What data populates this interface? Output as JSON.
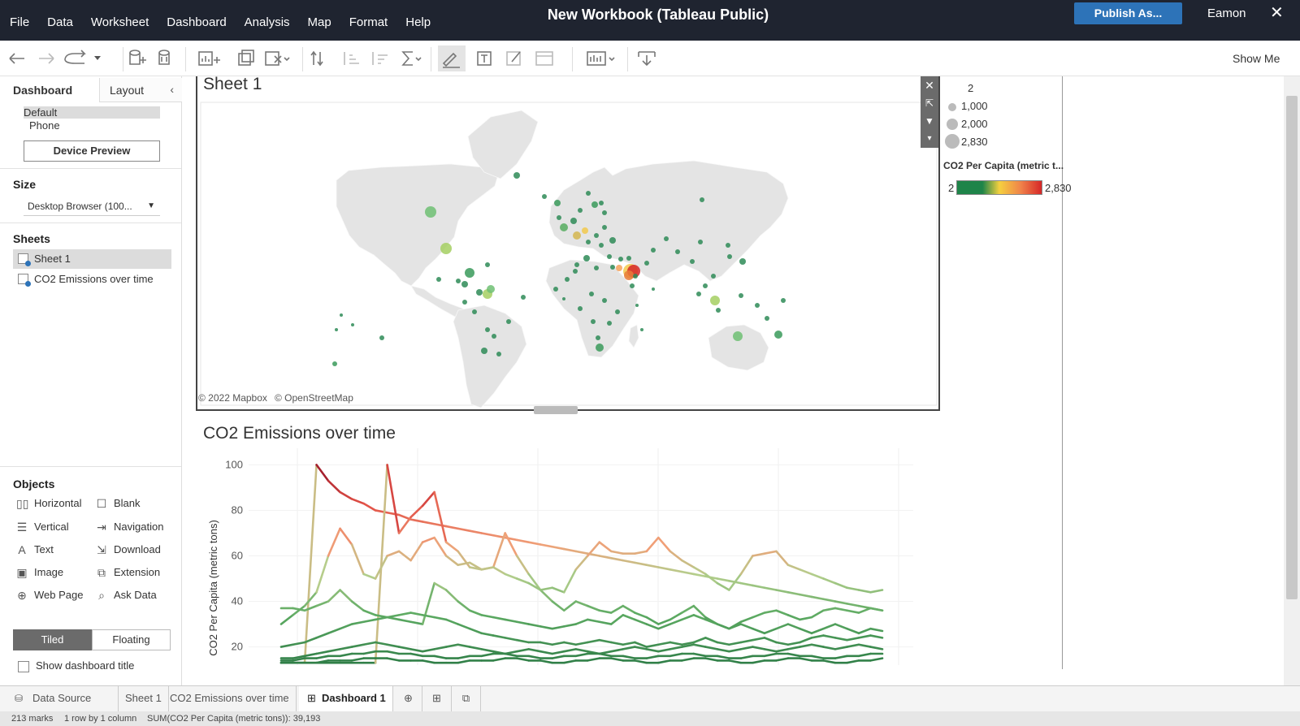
{
  "titlebar": {
    "title": "New Workbook (Tableau Public)",
    "menu": [
      "File",
      "Data",
      "Worksheet",
      "Dashboard",
      "Analysis",
      "Map",
      "Format",
      "Help"
    ],
    "publish_label": "Publish As...",
    "user": "Eamon",
    "close_glyph": "✕"
  },
  "toolbar": {
    "show_me_label": "Show Me"
  },
  "left_panel": {
    "tab_dashboard": "Dashboard",
    "tab_layout": "Layout",
    "device_default": "Default",
    "device_phone": "Phone",
    "device_preview_label": "Device Preview",
    "size_heading": "Size",
    "size_value": "Desktop Browser (100...",
    "sheets_heading": "Sheets",
    "sheets": [
      "Sheet 1",
      "CO2 Emissions over time"
    ],
    "objects_heading": "Objects",
    "objects": [
      {
        "label": "Horizontal",
        "icon": "horizontal-icon"
      },
      {
        "label": "Blank",
        "icon": "blank-icon"
      },
      {
        "label": "Vertical",
        "icon": "vertical-icon"
      },
      {
        "label": "Navigation",
        "icon": "navigation-icon"
      },
      {
        "label": "Text",
        "icon": "text-icon"
      },
      {
        "label": "Download",
        "icon": "download-icon"
      },
      {
        "label": "Image",
        "icon": "image-icon"
      },
      {
        "label": "Extension",
        "icon": "extension-icon"
      },
      {
        "label": "Web Page",
        "icon": "web-page-icon"
      },
      {
        "label": "Ask Data",
        "icon": "ask-data-icon"
      }
    ],
    "tiled_label": "Tiled",
    "floating_label": "Floating",
    "show_title_label": "Show dashboard title"
  },
  "map_sheet": {
    "title": "Sheet 1",
    "attribution_mapbox": "© 2022 Mapbox",
    "attribution_osm": "© OpenStreetMap"
  },
  "legend": {
    "size_values": [
      "2",
      "1,000",
      "2,000",
      "2,830"
    ],
    "color_title": "CO2 Per Capita (metric t...",
    "color_min": "2",
    "color_max": "2,830",
    "colors": {
      "low": "#1e8449",
      "mid": "#f4d03f",
      "high": "#d62728"
    }
  },
  "bottom_tabs": [
    "Data Source",
    "Sheet 1",
    "CO2 Emissions over time",
    "Dashboard 1"
  ],
  "status": {
    "marks": "213 marks",
    "rows": "1 row by 1 column",
    "sum": "SUM(CO2 Per Capita (metric tons)): 39,193"
  },
  "chart_data": {
    "type": "line",
    "title": "CO2 Emissions over time",
    "ylabel": "CO2 Per Capita (metric tons)",
    "xlabel": "",
    "yticks": [
      "100",
      "80",
      "60",
      "40",
      "20"
    ],
    "ylim": [
      12,
      103
    ],
    "grid": true,
    "x": [
      0,
      1,
      2,
      3,
      4,
      5,
      6,
      7,
      8,
      9,
      10,
      11,
      12,
      13,
      14,
      15,
      16,
      17,
      18,
      19,
      20,
      21,
      22,
      23,
      24,
      25,
      26,
      27,
      28,
      29,
      30,
      31,
      32,
      33,
      34,
      35,
      36,
      37,
      38,
      39,
      40,
      41,
      42,
      43,
      44,
      45,
      46,
      47,
      48,
      49,
      50,
      51
    ],
    "series": [
      {
        "values": [
          13,
          13,
          13,
          100,
          93,
          88,
          85,
          83,
          80,
          79,
          78,
          76,
          75,
          74,
          73,
          72,
          71,
          70,
          69,
          68,
          67,
          66,
          65,
          64,
          63,
          62,
          61,
          60,
          59,
          58,
          57,
          56,
          55,
          54,
          53,
          52,
          51,
          50,
          49,
          48,
          47,
          46,
          45,
          44,
          43,
          42,
          41,
          40,
          39,
          38,
          37,
          36
        ]
      },
      {
        "values": [
          13,
          13,
          13,
          13,
          13,
          13,
          13,
          13,
          13,
          100,
          70,
          77,
          82,
          88,
          66,
          62,
          55,
          54,
          55,
          70,
          60,
          52,
          45,
          40,
          36,
          40,
          38,
          36,
          35,
          38,
          35,
          33,
          30,
          32,
          35,
          38,
          33,
          30,
          28,
          30,
          28,
          26,
          28,
          30,
          28,
          26,
          28,
          30,
          28,
          26,
          28,
          27
        ]
      },
      {
        "values": [
          30,
          34,
          38,
          44,
          60,
          72,
          65,
          52,
          50,
          60,
          62,
          58,
          66,
          68,
          60,
          56,
          57,
          54,
          55,
          52,
          50,
          48,
          45,
          46,
          44,
          54,
          60,
          66,
          62,
          61,
          61,
          62,
          68,
          62,
          58,
          55,
          52,
          48,
          45,
          52,
          60,
          61,
          62,
          56,
          54,
          52,
          50,
          48,
          46,
          45,
          44,
          45
        ]
      },
      {
        "values": [
          37,
          37,
          36,
          38,
          40,
          45,
          40,
          36,
          34,
          33,
          32,
          31,
          30,
          48,
          45,
          40,
          36,
          34,
          33,
          32,
          31,
          30,
          29,
          28,
          29,
          30,
          32,
          31,
          30,
          34,
          32,
          30,
          28,
          30,
          32,
          34,
          32,
          30,
          28,
          31,
          33,
          35,
          36,
          34,
          32,
          33,
          36,
          37,
          36,
          35,
          37,
          36
        ]
      },
      {
        "values": [
          20,
          21,
          22,
          24,
          26,
          28,
          30,
          31,
          32,
          33,
          34,
          35,
          34,
          33,
          32,
          30,
          28,
          26,
          25,
          24,
          23,
          22,
          22,
          21,
          22,
          21,
          22,
          23,
          22,
          21,
          22,
          20,
          21,
          22,
          21,
          22,
          24,
          22,
          21,
          22,
          23,
          24,
          22,
          21,
          22,
          24,
          25,
          24,
          23,
          24,
          25,
          24
        ]
      },
      {
        "values": [
          15,
          15,
          16,
          17,
          18,
          19,
          20,
          21,
          22,
          21,
          20,
          19,
          18,
          19,
          20,
          21,
          20,
          19,
          18,
          17,
          18,
          19,
          18,
          17,
          18,
          19,
          18,
          17,
          18,
          19,
          20,
          19,
          18,
          19,
          20,
          21,
          20,
          19,
          18,
          19,
          20,
          19,
          18,
          19,
          20,
          21,
          20,
          19,
          20,
          21,
          20,
          19
        ]
      },
      {
        "values": [
          14,
          14,
          15,
          15,
          16,
          16,
          17,
          17,
          18,
          18,
          17,
          17,
          16,
          16,
          15,
          15,
          16,
          16,
          17,
          17,
          16,
          16,
          15,
          15,
          16,
          16,
          17,
          17,
          16,
          16,
          15,
          15,
          16,
          16,
          17,
          17,
          16,
          16,
          15,
          15,
          16,
          16,
          17,
          17,
          16,
          16,
          15,
          15,
          16,
          16,
          17,
          17
        ]
      },
      {
        "values": [
          13,
          13,
          13,
          13,
          14,
          14,
          14,
          15,
          15,
          15,
          14,
          14,
          14,
          13,
          13,
          13,
          14,
          14,
          14,
          15,
          15,
          14,
          14,
          13,
          13,
          14,
          14,
          15,
          15,
          14,
          14,
          13,
          13,
          14,
          14,
          15,
          15,
          14,
          14,
          13,
          13,
          14,
          14,
          15,
          15,
          14,
          14,
          13,
          13,
          14,
          14,
          15
        ]
      }
    ]
  }
}
